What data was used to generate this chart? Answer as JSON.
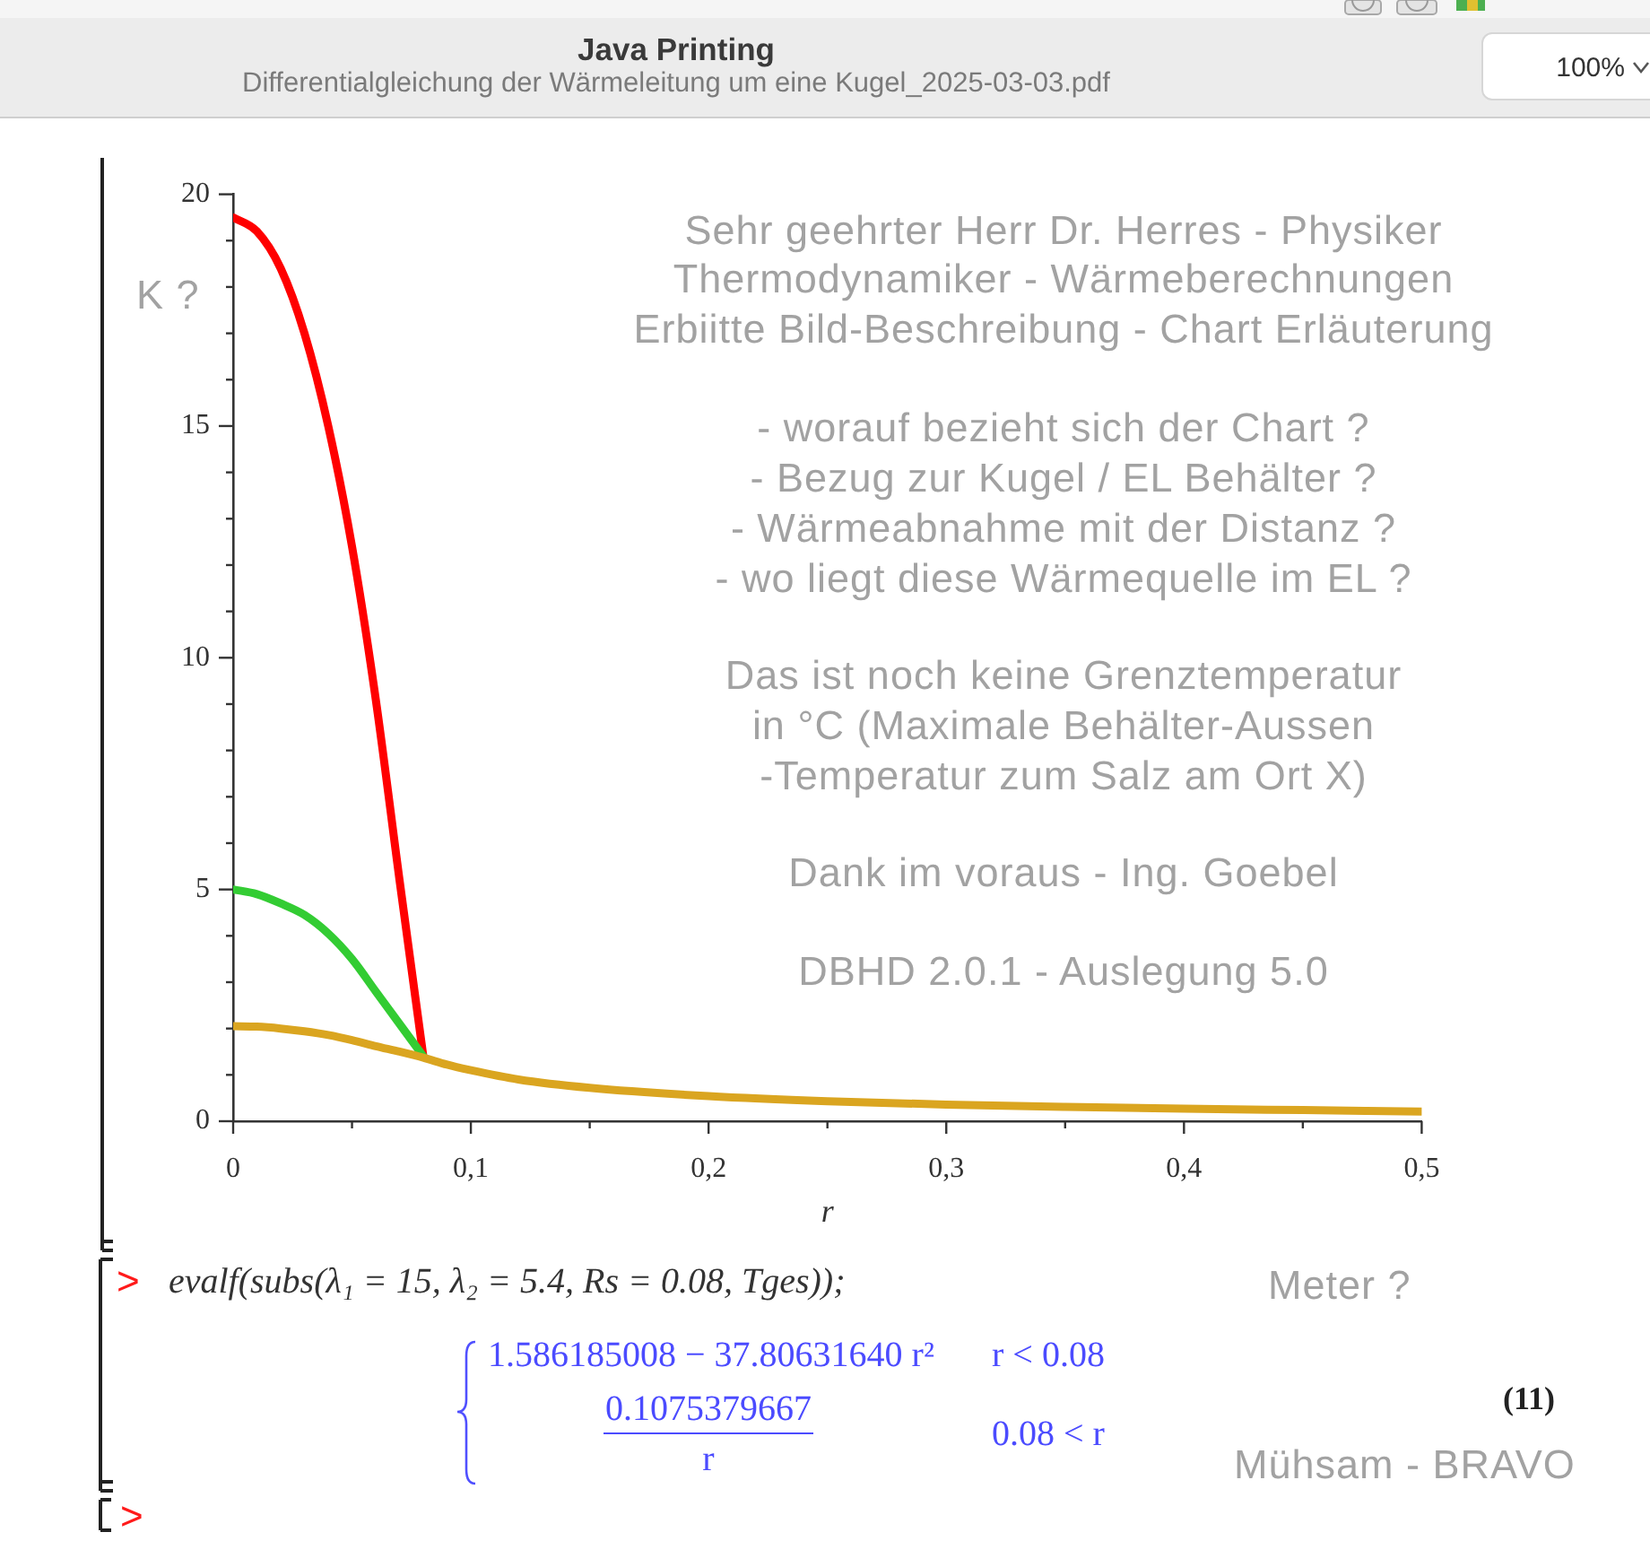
{
  "chart_data": {
    "type": "line",
    "title": "Java Printing",
    "subtitle": "Differentialgleichung der Wärmeleitung um eine Kugel_2025-03-03.pdf",
    "xlabel": "r",
    "annotations": [
      "K ?",
      "Sehr geehrter Herr Dr. Herres - Physiker",
      "Thermodynamiker - Wärmeberechnungen",
      "Erbiitte Bild-Beschreibung - Chart Erläuterung",
      "- worauf bezieht sich der Chart ?",
      "- Bezug zur Kugel / EL Behälter ?",
      "- Wärmeabnahme mit der Distanz ?",
      "- wo liegt diese Wärmequelle im EL ?",
      "Das ist noch keine Grenztemperatur",
      "in °C (Maximale Behälter-Aussen",
      "-Temperatur zum Salz am Ort X)",
      "Dank im voraus - Ing. Goebel",
      "DBHD 2.0.1 - Auslegung 5.0",
      "Meter ?",
      "Mühsam - BRAVO",
      ">",
      "evalf(subs(λ₁ = 15, λ₂ = 5.4, Rs = 0.08, Tges));",
      "1.586185008 − 37.80631640 r²",
      "r < 0.08",
      "0.1075379667",
      "r",
      "0.08 < r",
      "(11)",
      ">",
      "100%"
    ],
    "series": [
      {
        "color": "#ff0000",
        "x": [
          0,
          0.01,
          0.02,
          0.03,
          0.04,
          0.05,
          0.06,
          0.07,
          0.08
        ],
        "values": [
          19.5,
          19.2,
          18.4,
          17.0,
          15.0,
          12.4,
          9.1,
          5.2,
          1.4
        ]
      },
      {
        "color": "#33cc33",
        "x": [
          0,
          0.01,
          0.02,
          0.03,
          0.04,
          0.05,
          0.06,
          0.07,
          0.08
        ],
        "values": [
          5.0,
          4.9,
          4.7,
          4.45,
          4.05,
          3.5,
          2.8,
          2.1,
          1.4
        ]
      },
      {
        "color": "#daa520",
        "x": [
          0,
          0.01,
          0.02,
          0.03,
          0.04,
          0.05,
          0.06,
          0.07,
          0.08,
          0.09,
          0.1,
          0.12,
          0.15,
          0.2,
          0.25,
          0.3,
          0.35,
          0.4,
          0.45,
          0.5
        ],
        "values": [
          2.05,
          2.04,
          2.0,
          1.94,
          1.86,
          1.75,
          1.62,
          1.5,
          1.37,
          1.22,
          1.1,
          0.9,
          0.72,
          0.54,
          0.43,
          0.36,
          0.31,
          0.27,
          0.24,
          0.21
        ]
      }
    ],
    "xlim": [
      0,
      0.5
    ],
    "ylim": [
      0,
      20
    ],
    "xticks": [
      0,
      {
        "value": 0.05,
        "label": null
      },
      {
        "value": 0.1,
        "label": "0,1"
      },
      {
        "value": 0.15,
        "label": null
      },
      {
        "value": 0.2,
        "label": "0,2"
      },
      {
        "value": 0.25,
        "label": null
      },
      {
        "value": 0.3,
        "label": "0,3"
      },
      {
        "value": 0.35,
        "label": null
      },
      {
        "value": 0.4,
        "label": "0,4"
      },
      {
        "value": 0.45,
        "label": null
      },
      {
        "value": 0.5,
        "label": "0,5"
      }
    ],
    "yticks": [
      0,
      {
        "value": 1,
        "label": null
      },
      {
        "value": 2,
        "label": null
      },
      {
        "value": 3,
        "label": null
      },
      {
        "value": 4,
        "label": null
      },
      5,
      {
        "value": 6,
        "label": null
      },
      {
        "value": 7,
        "label": null
      },
      {
        "value": 8,
        "label": null
      },
      {
        "value": 9,
        "label": null
      },
      10,
      {
        "value": 11,
        "label": null
      },
      {
        "value": 12,
        "label": null
      },
      {
        "value": 13,
        "label": null
      },
      {
        "value": 14,
        "label": null
      },
      15,
      {
        "value": 16,
        "label": null
      },
      {
        "value": 17,
        "label": null
      },
      {
        "value": 18,
        "label": null
      },
      {
        "value": 19,
        "label": null
      },
      20
    ]
  }
}
